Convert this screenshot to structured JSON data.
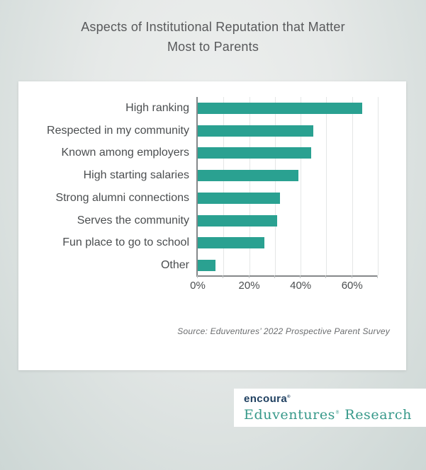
{
  "page": {
    "title_full": "Aspects of Institutional Reputation that Matter Most to Parents",
    "title_line1": "Aspects of Institutional Reputation that Matter",
    "title_line2": "Most to Parents"
  },
  "chart_data": {
    "type": "bar",
    "orientation": "horizontal",
    "title": "Aspects of Institutional Reputation that Matter Most to Parents",
    "categories": [
      "High ranking",
      "Respected in my community",
      "Known among employers",
      "High starting salaries",
      "Strong alumni connections",
      "Serves the community",
      "Fun place to go to school",
      "Other"
    ],
    "values": [
      64,
      45,
      44,
      39,
      32,
      31,
      26,
      7
    ],
    "unit": "%",
    "xlim": [
      0,
      70
    ],
    "grid_step": 10,
    "labeled_ticks": [
      {
        "value": 0,
        "label": "0%"
      },
      {
        "value": 20,
        "label": "20%"
      },
      {
        "value": 40,
        "label": "40%"
      },
      {
        "value": 60,
        "label": "60%"
      }
    ],
    "grid": true,
    "legend": false,
    "bar_color": "#2aa191"
  },
  "source_note": "Source: Eduventures’ 2022 Prospective Parent Survey",
  "logo": {
    "brand": "encoura",
    "brand_reg_mark": "®",
    "product": "Eduventures",
    "product_reg_mark": "®",
    "suffix": " Research"
  },
  "colors": {
    "bar_teal": "#2aa191",
    "logo_navy": "#1d3e5f",
    "logo_teal": "#37998a",
    "title_gray": "#58595b",
    "label_gray": "#4b4e50"
  }
}
